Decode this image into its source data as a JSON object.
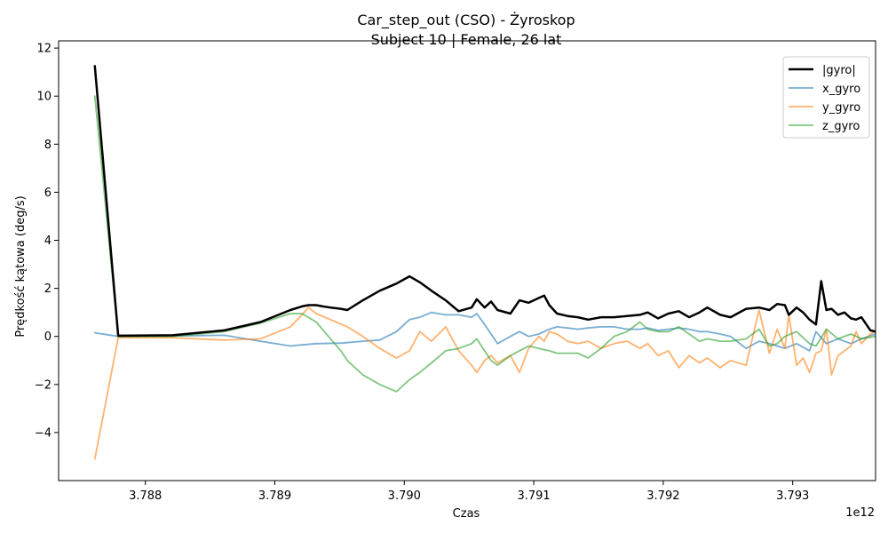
{
  "chart_data": {
    "type": "line",
    "title": "Car_step_out (CSO) - Żyroskop",
    "subtitle": "Subject 10 | Female, 26 lat",
    "xlabel": "Czas",
    "ylabel": "Prędkość kątowa (deg/s)",
    "x_offset_label": "1e12",
    "xlim": [
      3.78733,
      3.79364
    ],
    "ylim": [
      -6,
      12.3
    ],
    "x_ticks": [
      3.788,
      3.789,
      3.79,
      3.791,
      3.792,
      3.793
    ],
    "x_tick_labels": [
      "3.788",
      "3.789",
      "3.790",
      "3.791",
      "3.792",
      "3.793"
    ],
    "y_ticks": [
      -4,
      -2,
      0,
      2,
      4,
      6,
      8,
      10,
      12
    ],
    "y_tick_labels": [
      "−4",
      "−2",
      "0",
      "2",
      "4",
      "6",
      "8",
      "10",
      "12"
    ],
    "grid": false,
    "legend_position": "top-right",
    "series": [
      {
        "name": "|gyro|",
        "color": "#000000",
        "opacity": 1.0,
        "width": 2.5,
        "points": [
          [
            3.78761,
            11.25
          ],
          [
            3.78779,
            0.03
          ],
          [
            3.78821,
            0.05
          ],
          [
            3.78861,
            0.25
          ],
          [
            3.78889,
            0.6
          ],
          [
            3.78912,
            1.1
          ],
          [
            3.78921,
            1.25
          ],
          [
            3.78926,
            1.3
          ],
          [
            3.78932,
            1.3
          ],
          [
            3.78937,
            1.25
          ],
          [
            3.78943,
            1.2
          ],
          [
            3.78951,
            1.15
          ],
          [
            3.78956,
            1.1
          ],
          [
            3.78968,
            1.5
          ],
          [
            3.78981,
            1.9
          ],
          [
            3.78994,
            2.2
          ],
          [
            3.79004,
            2.5
          ],
          [
            3.79012,
            2.25
          ],
          [
            3.79021,
            1.9
          ],
          [
            3.79032,
            1.5
          ],
          [
            3.79042,
            1.05
          ],
          [
            3.79052,
            1.2
          ],
          [
            3.79056,
            1.55
          ],
          [
            3.79062,
            1.2
          ],
          [
            3.79067,
            1.45
          ],
          [
            3.79072,
            1.1
          ],
          [
            3.79082,
            0.95
          ],
          [
            3.79089,
            1.5
          ],
          [
            3.79096,
            1.4
          ],
          [
            3.79104,
            1.6
          ],
          [
            3.79108,
            1.7
          ],
          [
            3.79112,
            1.3
          ],
          [
            3.79118,
            0.95
          ],
          [
            3.79126,
            0.85
          ],
          [
            3.79134,
            0.8
          ],
          [
            3.79142,
            0.7
          ],
          [
            3.79152,
            0.8
          ],
          [
            3.79162,
            0.8
          ],
          [
            3.79172,
            0.85
          ],
          [
            3.79182,
            0.9
          ],
          [
            3.79188,
            1.0
          ],
          [
            3.79196,
            0.75
          ],
          [
            3.79204,
            0.95
          ],
          [
            3.79212,
            1.05
          ],
          [
            3.7922,
            0.8
          ],
          [
            3.79228,
            1.0
          ],
          [
            3.79234,
            1.2
          ],
          [
            3.79244,
            0.9
          ],
          [
            3.79252,
            0.8
          ],
          [
            3.79264,
            1.15
          ],
          [
            3.79274,
            1.2
          ],
          [
            3.79282,
            1.1
          ],
          [
            3.79288,
            1.35
          ],
          [
            3.79294,
            1.3
          ],
          [
            3.79297,
            0.9
          ],
          [
            3.79303,
            1.2
          ],
          [
            3.79308,
            1.0
          ],
          [
            3.79313,
            0.7
          ],
          [
            3.79318,
            0.5
          ],
          [
            3.79322,
            2.3
          ],
          [
            3.79326,
            1.1
          ],
          [
            3.7933,
            1.15
          ],
          [
            3.79335,
            0.9
          ],
          [
            3.7934,
            1.0
          ],
          [
            3.79345,
            0.75
          ],
          [
            3.79349,
            0.7
          ],
          [
            3.79353,
            0.8
          ],
          [
            3.7936,
            0.25
          ],
          [
            3.79364,
            0.2
          ]
        ]
      },
      {
        "name": "x_gyro",
        "color": "#1f77b4",
        "opacity": 0.6,
        "width": 1.8,
        "points": [
          [
            3.78761,
            0.15
          ],
          [
            3.78779,
            0.0
          ],
          [
            3.78821,
            0.02
          ],
          [
            3.78861,
            0.05
          ],
          [
            3.78889,
            -0.2
          ],
          [
            3.78912,
            -0.4
          ],
          [
            3.78921,
            -0.35
          ],
          [
            3.78932,
            -0.3
          ],
          [
            3.78951,
            -0.28
          ],
          [
            3.78968,
            -0.2
          ],
          [
            3.78981,
            -0.15
          ],
          [
            3.78994,
            0.2
          ],
          [
            3.79004,
            0.7
          ],
          [
            3.79012,
            0.8
          ],
          [
            3.79021,
            1.0
          ],
          [
            3.79032,
            0.9
          ],
          [
            3.79042,
            0.9
          ],
          [
            3.79052,
            0.8
          ],
          [
            3.79056,
            0.95
          ],
          [
            3.79062,
            0.5
          ],
          [
            3.79067,
            0.1
          ],
          [
            3.79072,
            -0.3
          ],
          [
            3.79082,
            0.0
          ],
          [
            3.79089,
            0.2
          ],
          [
            3.79096,
            0.0
          ],
          [
            3.79104,
            0.1
          ],
          [
            3.79112,
            0.3
          ],
          [
            3.79118,
            0.4
          ],
          [
            3.79126,
            0.35
          ],
          [
            3.79134,
            0.3
          ],
          [
            3.79142,
            0.35
          ],
          [
            3.79152,
            0.4
          ],
          [
            3.79162,
            0.4
          ],
          [
            3.79172,
            0.3
          ],
          [
            3.79182,
            0.3
          ],
          [
            3.79188,
            0.35
          ],
          [
            3.79196,
            0.25
          ],
          [
            3.79204,
            0.3
          ],
          [
            3.79212,
            0.35
          ],
          [
            3.7922,
            0.3
          ],
          [
            3.79228,
            0.2
          ],
          [
            3.79234,
            0.2
          ],
          [
            3.79244,
            0.1
          ],
          [
            3.79252,
            0.0
          ],
          [
            3.79264,
            -0.5
          ],
          [
            3.79274,
            -0.2
          ],
          [
            3.79282,
            -0.3
          ],
          [
            3.79288,
            -0.4
          ],
          [
            3.79294,
            -0.5
          ],
          [
            3.79303,
            -0.3
          ],
          [
            3.79313,
            -0.6
          ],
          [
            3.79318,
            0.2
          ],
          [
            3.79326,
            -0.3
          ],
          [
            3.79335,
            -0.1
          ],
          [
            3.79345,
            -0.3
          ],
          [
            3.79353,
            -0.1
          ],
          [
            3.79364,
            0.1
          ]
        ]
      },
      {
        "name": "y_gyro",
        "color": "#ff7f0e",
        "opacity": 0.6,
        "width": 1.8,
        "points": [
          [
            3.78761,
            -5.1
          ],
          [
            3.78779,
            -0.05
          ],
          [
            3.78821,
            -0.05
          ],
          [
            3.78861,
            -0.15
          ],
          [
            3.78889,
            -0.1
          ],
          [
            3.78912,
            0.4
          ],
          [
            3.78921,
            0.9
          ],
          [
            3.78926,
            1.2
          ],
          [
            3.78932,
            0.95
          ],
          [
            3.78943,
            0.7
          ],
          [
            3.78956,
            0.4
          ],
          [
            3.78968,
            0.0
          ],
          [
            3.78981,
            -0.5
          ],
          [
            3.78994,
            -0.9
          ],
          [
            3.79004,
            -0.6
          ],
          [
            3.79012,
            0.2
          ],
          [
            3.79021,
            -0.2
          ],
          [
            3.79032,
            0.4
          ],
          [
            3.79042,
            -0.6
          ],
          [
            3.79052,
            -1.2
          ],
          [
            3.79056,
            -1.5
          ],
          [
            3.79062,
            -1.0
          ],
          [
            3.79067,
            -0.8
          ],
          [
            3.79072,
            -1.1
          ],
          [
            3.79082,
            -0.8
          ],
          [
            3.79089,
            -1.5
          ],
          [
            3.79096,
            -0.5
          ],
          [
            3.79104,
            0.0
          ],
          [
            3.79108,
            -0.2
          ],
          [
            3.79112,
            0.2
          ],
          [
            3.79118,
            0.1
          ],
          [
            3.79126,
            -0.2
          ],
          [
            3.79134,
            -0.3
          ],
          [
            3.79142,
            -0.2
          ],
          [
            3.79152,
            -0.5
          ],
          [
            3.79162,
            -0.3
          ],
          [
            3.79172,
            -0.2
          ],
          [
            3.79182,
            -0.5
          ],
          [
            3.79188,
            -0.3
          ],
          [
            3.79196,
            -0.8
          ],
          [
            3.79204,
            -0.6
          ],
          [
            3.79212,
            -1.3
          ],
          [
            3.7922,
            -0.8
          ],
          [
            3.79228,
            -1.1
          ],
          [
            3.79234,
            -0.9
          ],
          [
            3.79244,
            -1.3
          ],
          [
            3.79252,
            -1.0
          ],
          [
            3.79264,
            -1.2
          ],
          [
            3.79274,
            1.1
          ],
          [
            3.79282,
            -0.7
          ],
          [
            3.79288,
            0.3
          ],
          [
            3.79294,
            -0.5
          ],
          [
            3.79297,
            0.9
          ],
          [
            3.79303,
            -1.2
          ],
          [
            3.79308,
            -0.9
          ],
          [
            3.79313,
            -1.5
          ],
          [
            3.79318,
            -0.7
          ],
          [
            3.79322,
            -0.6
          ],
          [
            3.79326,
            0.3
          ],
          [
            3.7933,
            -1.6
          ],
          [
            3.79335,
            -0.8
          ],
          [
            3.7934,
            -0.6
          ],
          [
            3.79345,
            -0.4
          ],
          [
            3.79349,
            0.2
          ],
          [
            3.79353,
            -0.3
          ],
          [
            3.7936,
            0.1
          ],
          [
            3.79364,
            0.2
          ]
        ]
      },
      {
        "name": "z_gyro",
        "color": "#2ca02c",
        "opacity": 0.6,
        "width": 1.8,
        "points": [
          [
            3.78761,
            10.0
          ],
          [
            3.78779,
            0.0
          ],
          [
            3.78821,
            0.0
          ],
          [
            3.78861,
            0.2
          ],
          [
            3.78889,
            0.55
          ],
          [
            3.78912,
            0.95
          ],
          [
            3.78921,
            0.95
          ],
          [
            3.78932,
            0.6
          ],
          [
            3.78943,
            -0.1
          ],
          [
            3.78951,
            -0.6
          ],
          [
            3.78956,
            -1.0
          ],
          [
            3.78968,
            -1.6
          ],
          [
            3.78981,
            -2.0
          ],
          [
            3.78994,
            -2.3
          ],
          [
            3.79004,
            -1.8
          ],
          [
            3.79012,
            -1.5
          ],
          [
            3.79021,
            -1.1
          ],
          [
            3.79032,
            -0.6
          ],
          [
            3.79042,
            -0.5
          ],
          [
            3.79052,
            -0.3
          ],
          [
            3.79056,
            -0.1
          ],
          [
            3.79062,
            -0.6
          ],
          [
            3.79067,
            -1.0
          ],
          [
            3.79072,
            -1.2
          ],
          [
            3.79082,
            -0.8
          ],
          [
            3.79089,
            -0.6
          ],
          [
            3.79096,
            -0.4
          ],
          [
            3.79104,
            -0.5
          ],
          [
            3.79112,
            -0.6
          ],
          [
            3.79118,
            -0.7
          ],
          [
            3.79126,
            -0.7
          ],
          [
            3.79134,
            -0.7
          ],
          [
            3.79142,
            -0.9
          ],
          [
            3.79152,
            -0.5
          ],
          [
            3.79162,
            0.0
          ],
          [
            3.79172,
            0.2
          ],
          [
            3.79182,
            0.6
          ],
          [
            3.79188,
            0.3
          ],
          [
            3.79196,
            0.2
          ],
          [
            3.79204,
            0.2
          ],
          [
            3.79212,
            0.4
          ],
          [
            3.7922,
            0.1
          ],
          [
            3.79228,
            -0.2
          ],
          [
            3.79234,
            -0.1
          ],
          [
            3.79244,
            -0.2
          ],
          [
            3.79252,
            -0.2
          ],
          [
            3.79264,
            -0.1
          ],
          [
            3.79274,
            0.3
          ],
          [
            3.79282,
            -0.4
          ],
          [
            3.79288,
            -0.3
          ],
          [
            3.79294,
            0.0
          ],
          [
            3.79303,
            0.2
          ],
          [
            3.79313,
            -0.3
          ],
          [
            3.79318,
            -0.4
          ],
          [
            3.79326,
            0.3
          ],
          [
            3.79335,
            -0.1
          ],
          [
            3.79345,
            0.1
          ],
          [
            3.79353,
            -0.1
          ],
          [
            3.79364,
            0.0
          ]
        ]
      }
    ]
  }
}
